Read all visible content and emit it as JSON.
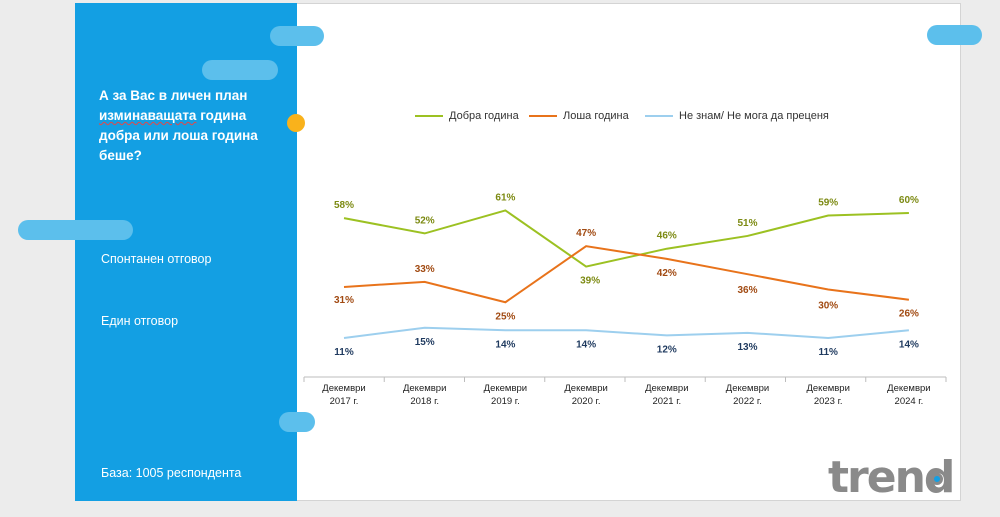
{
  "question": {
    "line1": "А за Вас в личен план",
    "line2a": "изминаващата",
    "line2b": " година",
    "line3": "добра или лоша година",
    "line4": "беше?"
  },
  "answer_type": "Спонтанен отговор",
  "answer_count": "Един отговор",
  "base": "База:  1005 респондента",
  "logo": "trend",
  "colors": {
    "panel": "#139fe3",
    "good": "#9cc122",
    "bad": "#e8731b",
    "unknown": "#9dcfee"
  },
  "chart_data": {
    "type": "line",
    "categories": [
      [
        "Декември",
        "2017 г."
      ],
      [
        "Декември",
        "2018 г."
      ],
      [
        "Декември",
        "2019 г."
      ],
      [
        "Декември",
        "2020 г."
      ],
      [
        "Декември",
        "2021 г."
      ],
      [
        "Декември",
        "2022 г."
      ],
      [
        "Декември",
        "2023 г."
      ],
      [
        "Декември",
        "2024 г."
      ]
    ],
    "series": [
      {
        "name": "Добра година",
        "values": [
          58,
          52,
          61,
          39,
          46,
          51,
          59,
          60
        ],
        "color": "#9cc122",
        "label_color": "#7c8a12"
      },
      {
        "name": "Лоша година",
        "values": [
          31,
          33,
          25,
          47,
          42,
          36,
          30,
          26
        ],
        "color": "#e8731b",
        "label_color": "#a14a12"
      },
      {
        "name": "Не знам/ Не мога да преценя",
        "values": [
          11,
          15,
          14,
          14,
          12,
          13,
          11,
          14
        ],
        "color": "#9dcfee",
        "label_color": "#1f3a5f"
      }
    ],
    "value_suffix": "%",
    "legend_position": "top",
    "grid": false
  }
}
